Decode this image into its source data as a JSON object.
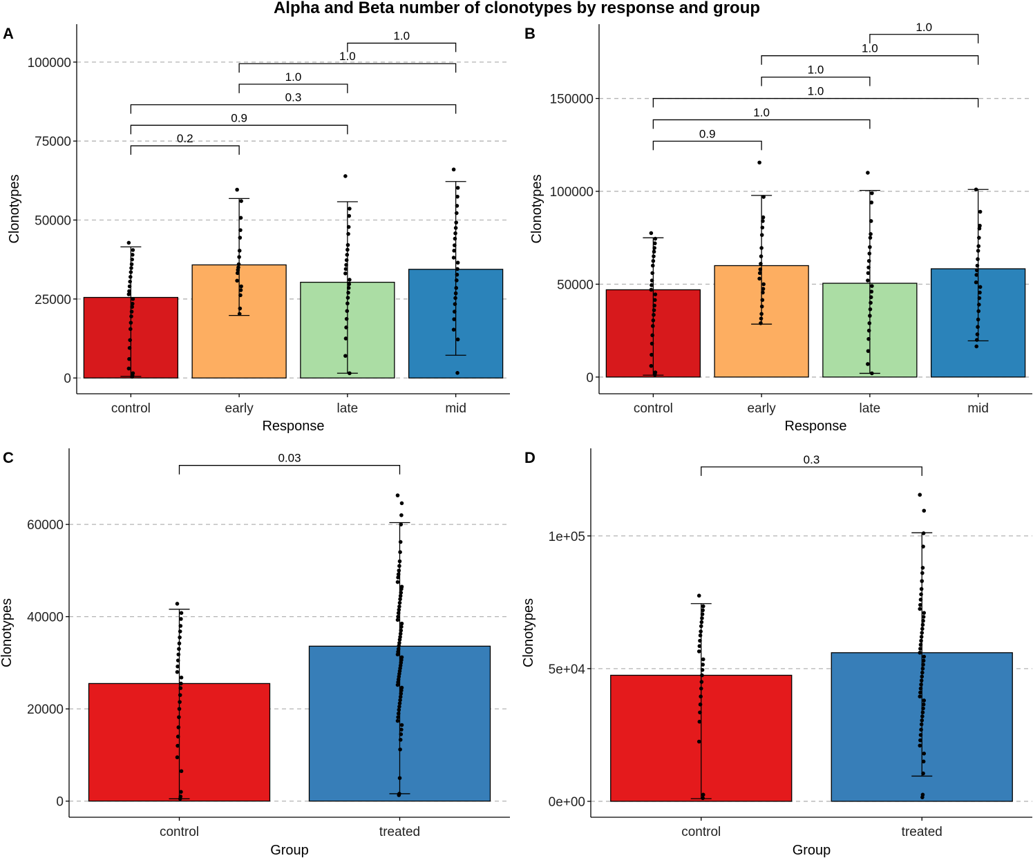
{
  "figure": {
    "title": "Alpha and Beta number of clonotypes by response and group"
  },
  "chart_data": [
    {
      "panel": "A",
      "type": "bar",
      "xlabel": "Response",
      "ylabel": "Clonotypes",
      "ylim": [
        -5000,
        112000
      ],
      "yticks": [
        0,
        25000,
        50000,
        75000,
        100000
      ],
      "ytick_labels": [
        "0",
        "25000",
        "50000",
        "75000",
        "100000"
      ],
      "categories": [
        "control",
        "early",
        "late",
        "mid"
      ],
      "colors": [
        "#d7191c",
        "#fdae61",
        "#abdda4",
        "#2b83ba"
      ],
      "values": [
        25500,
        35800,
        30300,
        34400
      ],
      "error_low": [
        500,
        19800,
        1500,
        7200
      ],
      "error_high": [
        41500,
        56800,
        55800,
        62200
      ],
      "points": [
        [
          42800,
          40500,
          39000,
          37500,
          36000,
          34800,
          33500,
          32000,
          30500,
          29000,
          27500,
          26500,
          25000,
          23500,
          22500,
          21000,
          19500,
          17500,
          15500,
          12000,
          9500,
          6000,
          3000,
          1500,
          700,
          400
        ],
        [
          59600,
          56000,
          50700,
          46800,
          44400,
          40300,
          38300,
          36000,
          35000,
          34200,
          33200,
          30800,
          29000,
          27800,
          26200,
          22000,
          20300
        ],
        [
          63900,
          53600,
          51300,
          47800,
          45600,
          42100,
          40600,
          39000,
          37300,
          35800,
          34500,
          33100,
          31100,
          29700,
          28500,
          27000,
          25400,
          23600,
          21200,
          18700,
          16000,
          12500,
          7000,
          1500
        ],
        [
          66000,
          60200,
          57400,
          54500,
          52200,
          49200,
          47500,
          45800,
          44100,
          42000,
          40300,
          38100,
          36500,
          34500,
          32700,
          30900,
          28500,
          26800,
          25300,
          23400,
          21000,
          18600,
          15300,
          12200,
          1600
        ]
      ],
      "comparisons": [
        {
          "from": 0,
          "to": 1,
          "y": 73500,
          "label": "0.2"
        },
        {
          "from": 0,
          "to": 2,
          "y": 80000,
          "label": "0.9"
        },
        {
          "from": 0,
          "to": 3,
          "y": 86500,
          "label": "0.3"
        },
        {
          "from": 1,
          "to": 2,
          "y": 93000,
          "label": "1.0"
        },
        {
          "from": 1,
          "to": 3,
          "y": 99500,
          "label": "1.0"
        },
        {
          "from": 2,
          "to": 3,
          "y": 106000,
          "label": "1.0"
        }
      ]
    },
    {
      "panel": "B",
      "type": "bar",
      "xlabel": "Response",
      "ylabel": "Clonotypes",
      "ylim": [
        -9000,
        190000
      ],
      "yticks": [
        0,
        50000,
        100000,
        150000
      ],
      "ytick_labels": [
        "0",
        "50000",
        "100000",
        "150000"
      ],
      "categories": [
        "control",
        "early",
        "late",
        "mid"
      ],
      "colors": [
        "#d7191c",
        "#fdae61",
        "#abdda4",
        "#2b83ba"
      ],
      "values": [
        47000,
        60000,
        50500,
        58300
      ],
      "error_low": [
        1000,
        28500,
        2000,
        19500
      ],
      "error_high": [
        75000,
        97800,
        100500,
        101000
      ],
      "points": [
        [
          77500,
          74500,
          72000,
          69500,
          67500,
          65000,
          62500,
          60000,
          56000,
          52000,
          49500,
          47000,
          44500,
          41500,
          38500,
          36000,
          33500,
          30500,
          27500,
          22500,
          18000,
          12000,
          6000,
          2500,
          1200
        ],
        [
          115500,
          97000,
          86000,
          84000,
          80500,
          76500,
          69500,
          65000,
          61000,
          58000,
          56000,
          53000,
          50000,
          47500,
          45500,
          41500,
          38000,
          34000,
          31500,
          29000
        ],
        [
          110000,
          99000,
          94000,
          84000,
          77000,
          75000,
          70000,
          66500,
          62500,
          59000,
          56000,
          52000,
          49000,
          46000,
          43000,
          40000,
          36500,
          33000,
          29000,
          25000,
          20500,
          14000,
          7000,
          2000
        ],
        [
          101000,
          89000,
          81500,
          80000,
          75000,
          70500,
          68000,
          63500,
          60000,
          57500,
          55000,
          51000,
          48500,
          45500,
          42500,
          39000,
          35500,
          31000,
          27000,
          23000,
          20000,
          16500
        ]
      ],
      "comparisons": [
        {
          "from": 0,
          "to": 1,
          "y": 127000,
          "label": "0.9"
        },
        {
          "from": 0,
          "to": 2,
          "y": 138500,
          "label": "1.0"
        },
        {
          "from": 0,
          "to": 3,
          "y": 150000,
          "label": "1.0"
        },
        {
          "from": 1,
          "to": 2,
          "y": 161500,
          "label": "1.0"
        },
        {
          "from": 1,
          "to": 3,
          "y": 173000,
          "label": "1.0"
        },
        {
          "from": 2,
          "to": 3,
          "y": 184500,
          "label": "1.0"
        }
      ]
    },
    {
      "panel": "C",
      "type": "bar",
      "xlabel": "Group",
      "ylabel": "Clonotypes",
      "ylim": [
        -3500,
        76500
      ],
      "yticks": [
        0,
        20000,
        40000,
        60000
      ],
      "ytick_labels": [
        "0",
        "20000",
        "40000",
        "60000"
      ],
      "categories": [
        "control",
        "treated"
      ],
      "colors": [
        "#e41a1c",
        "#377eb8"
      ],
      "values": [
        25500,
        33600
      ],
      "error_low": [
        500,
        1600
      ],
      "error_high": [
        41600,
        60400
      ],
      "points": [
        [
          42800,
          40800,
          39500,
          38000,
          36800,
          35500,
          34200,
          33000,
          31800,
          30500,
          29200,
          28000,
          26800,
          25500,
          24500,
          23000,
          21500,
          20000,
          18200,
          16000,
          14000,
          12000,
          9500,
          6500,
          2000,
          1000,
          500
        ],
        [
          66300,
          64600,
          62000,
          60000,
          56200,
          54000,
          52000,
          51000,
          50000,
          49200,
          48500,
          47500,
          46500,
          46000,
          45200,
          44500,
          43800,
          43000,
          42200,
          41500,
          40800,
          40000,
          39300,
          38500,
          37800,
          37000,
          36300,
          35600,
          35000,
          34300,
          33700,
          33000,
          32400,
          31800,
          31200,
          30600,
          30000,
          29400,
          28800,
          28200,
          27600,
          27000,
          26400,
          25800,
          25200,
          24600,
          24000,
          23300,
          22600,
          21900,
          21200,
          20500,
          19800,
          19000,
          18200,
          17400,
          16500,
          15500,
          14500,
          13300,
          11200,
          5000,
          1600,
          1300
        ]
      ],
      "comparisons": [
        {
          "from": 0,
          "to": 1,
          "y": 72800,
          "label": "0.03"
        }
      ]
    },
    {
      "panel": "D",
      "type": "bar",
      "xlabel": "Group",
      "ylabel": "Clonotypes",
      "ylim": [
        -6000,
        133000
      ],
      "yticks": [
        0,
        50000,
        100000
      ],
      "ytick_labels": [
        "0e+00",
        "5e+04",
        "1e+05"
      ],
      "categories": [
        "control",
        "treated"
      ],
      "colors": [
        "#e41a1c",
        "#377eb8"
      ],
      "values": [
        47500,
        56000
      ],
      "error_low": [
        1000,
        9500
      ],
      "error_high": [
        74500,
        101200
      ],
      "points": [
        [
          77500,
          73500,
          72000,
          70500,
          69000,
          67500,
          66000,
          64000,
          62500,
          60500,
          58500,
          56500,
          53500,
          51500,
          49500,
          47500,
          45000,
          42500,
          39500,
          36500,
          33500,
          30000,
          22500,
          2500,
          1200
        ],
        [
          115500,
          109500,
          101000,
          96000,
          88000,
          86000,
          83000,
          80000,
          78000,
          76000,
          74000,
          72500,
          71000,
          69500,
          68000,
          66500,
          65000,
          63500,
          62000,
          60500,
          59000,
          57500,
          56000,
          54500,
          53000,
          51500,
          50000,
          48500,
          47000,
          45500,
          44000,
          42500,
          41000,
          39500,
          38000,
          36500,
          35000,
          33500,
          32000,
          30500,
          29000,
          27000,
          25000,
          23000,
          21000,
          18000,
          15000,
          10500,
          2500,
          1500
        ]
      ],
      "comparisons": [
        {
          "from": 0,
          "to": 1,
          "y": 126000,
          "label": "0.3"
        }
      ]
    }
  ]
}
